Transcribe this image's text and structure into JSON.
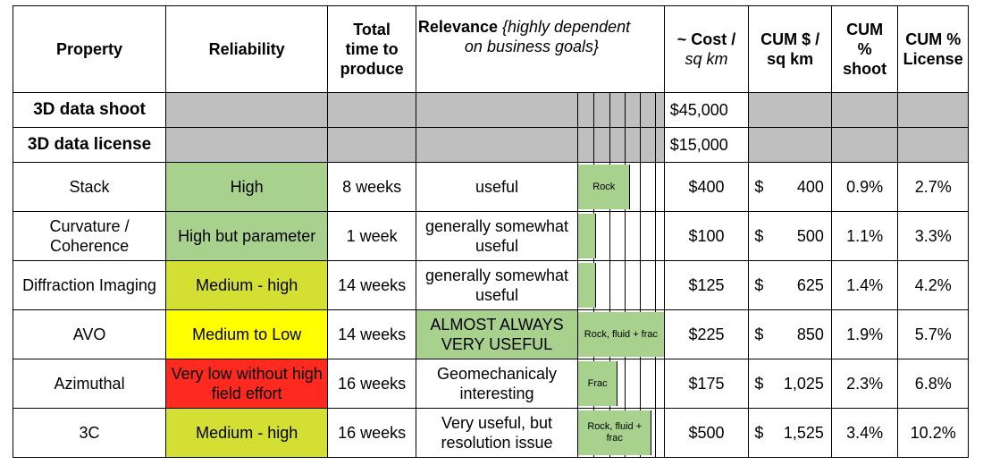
{
  "headers": {
    "property": "Property",
    "reliability": "Reliability",
    "time_line1": "Total",
    "time_line2": "time to",
    "time_line3": "produce",
    "relevance_bold": "Relevance",
    "relevance_italic1": "{highly dependent",
    "relevance_italic2": "on business goals}",
    "cost_line1": "~ Cost /",
    "cost_line2": "sq km",
    "cum_line1": "CUM  $ /",
    "cum_line2": "sq km",
    "shoot_line1": "CUM",
    "shoot_line2": "%",
    "shoot_line3": "shoot",
    "license_line1": "CUM %",
    "license_line2": "License"
  },
  "summary_rows": [
    {
      "label": "3D data shoot",
      "cost": "$45,000"
    },
    {
      "label": "3D data license",
      "cost": "$15,000"
    }
  ],
  "rows": [
    {
      "property": "Stack",
      "reliability": "High",
      "rel_color": "#a9d18e",
      "time": "8 weeks",
      "relevance": "useful",
      "relevance_color": "",
      "bar_label": "Rock",
      "bar_fill": 0.6,
      "cost": "$400",
      "cum_sign": "$",
      "cum_value": "400",
      "shoot": "0.9%",
      "license": "2.7%"
    },
    {
      "property": "Curvature / Coherence",
      "reliability": "High but parameter",
      "rel_color": "#a9d18e",
      "time": "1 week",
      "relevance": "generally somewhat useful",
      "relevance_color": "",
      "bar_label": "",
      "bar_fill": 0.2,
      "cost": "$100",
      "cum_sign": "$",
      "cum_value": "500",
      "shoot": "1.1%",
      "license": "3.3%"
    },
    {
      "property": "Diffraction Imaging",
      "reliability": "Medium - high",
      "rel_color": "#d4df33",
      "time": "14 weeks",
      "relevance": "generally somewhat useful",
      "relevance_color": "",
      "bar_label": "",
      "bar_fill": 0.2,
      "cost": "$125",
      "cum_sign": "$",
      "cum_value": "625",
      "shoot": "1.4%",
      "license": "4.2%"
    },
    {
      "property": "AVO",
      "reliability": "Medium to Low",
      "rel_color": "#ffff00",
      "time": "14 weeks",
      "relevance": "ALMOST ALWAYS VERY USEFUL",
      "relevance_color": "#a9d18e",
      "bar_label": "Rock, fluid + frac",
      "bar_fill": 1.0,
      "cost": "$225",
      "cum_sign": "$",
      "cum_value": "850",
      "shoot": "1.9%",
      "license": "5.7%"
    },
    {
      "property": "Azimuthal",
      "reliability": "Very low without high field effort",
      "rel_color": "#ff2a1f",
      "time": "16 weeks",
      "relevance": "Geomechanicaly interesting",
      "relevance_color": "",
      "bar_label": "Frac",
      "bar_fill": 0.45,
      "cost": "$175",
      "cum_sign": "$",
      "cum_value": "1,025",
      "shoot": "2.3%",
      "license": "6.8%"
    },
    {
      "property": "3C",
      "reliability": "Medium - high",
      "rel_color": "#d4df33",
      "time": "16 weeks",
      "relevance": "Very useful, but resolution issue",
      "relevance_color": "",
      "bar_label": "Rock, fluid + frac",
      "bar_fill": 0.85,
      "cost": "$500",
      "cum_sign": "$",
      "cum_value": "1,525",
      "shoot": "3.4%",
      "license": "10.2%"
    }
  ]
}
